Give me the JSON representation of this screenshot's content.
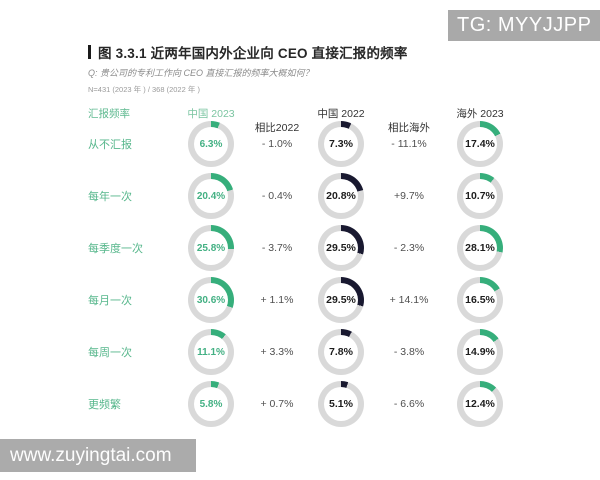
{
  "overlays": {
    "top_right": "TG: MYYJJPP",
    "bottom_left": "www.zuyingtai.com"
  },
  "colors": {
    "green": "#36ae7b",
    "navy": "#191930",
    "ring": "#d9d9d9",
    "label_green": "#57b78c"
  },
  "chart_data": {
    "type": "table",
    "title": "图 3.3.1 近两年国内外企业向 CEO 直接汇报的频率",
    "question": "Q: 贵公司的专利工作向 CEO 直接汇报的频率大概如何？",
    "sample": "N=431 (2023 年 ) / 368 (2022 年 )",
    "columns": [
      "汇报频率",
      "中国 2023",
      "相比2022",
      "中国 2022",
      "相比海外",
      "海外 2023"
    ],
    "donut_unit": "%",
    "rows": [
      {
        "label": "从不汇报",
        "china2023_pct": 6.3,
        "china2023_label": "6.3%",
        "vs2022": "- 1.0%",
        "china2022_pct": 7.3,
        "china2022_label": "7.3%",
        "vs_overseas": "- 11.1%",
        "overseas2023_pct": 17.4,
        "overseas2023_label": "17.4%"
      },
      {
        "label": "每年一次",
        "china2023_pct": 20.4,
        "china2023_label": "20.4%",
        "vs2022": "- 0.4%",
        "china2022_pct": 20.8,
        "china2022_label": "20.8%",
        "vs_overseas": "+9.7%",
        "overseas2023_pct": 10.7,
        "overseas2023_label": "10.7%"
      },
      {
        "label": "每季度一次",
        "china2023_pct": 25.8,
        "china2023_label": "25.8%",
        "vs2022": "- 3.7%",
        "china2022_pct": 29.5,
        "china2022_label": "29.5%",
        "vs_overseas": "- 2.3%",
        "overseas2023_pct": 28.1,
        "overseas2023_label": "28.1%"
      },
      {
        "label": "每月一次",
        "china2023_pct": 30.6,
        "china2023_label": "30.6%",
        "vs2022": "+ 1.1%",
        "china2022_pct": 29.5,
        "china2022_label": "29.5%",
        "vs_overseas": "+ 14.1%",
        "overseas2023_pct": 16.5,
        "overseas2023_label": "16.5%"
      },
      {
        "label": "每周一次",
        "china2023_pct": 11.1,
        "china2023_label": "11.1%",
        "vs2022": "+ 3.3%",
        "china2022_pct": 7.8,
        "china2022_label": "7.8%",
        "vs_overseas": "- 3.8%",
        "overseas2023_pct": 14.9,
        "overseas2023_label": "14.9%"
      },
      {
        "label": "更频繁",
        "china2023_pct": 5.8,
        "china2023_label": "5.8%",
        "vs2022": "+ 0.7%",
        "china2022_pct": 5.1,
        "china2022_label": "5.1%",
        "vs_overseas": "- 6.6%",
        "overseas2023_pct": 12.4,
        "overseas2023_label": "12.4%"
      }
    ]
  }
}
